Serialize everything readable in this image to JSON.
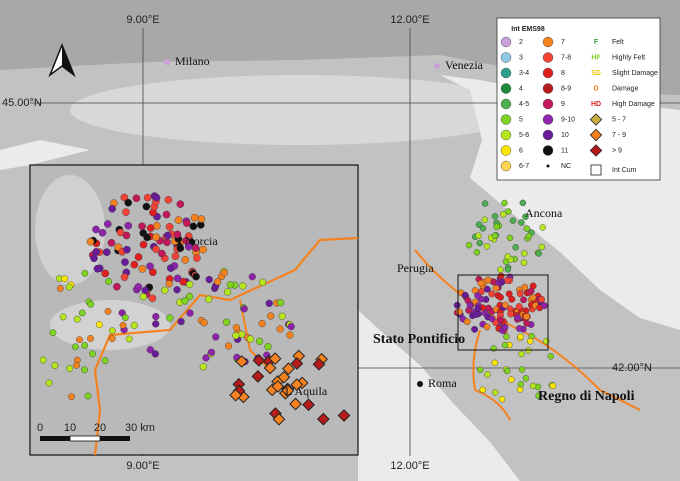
{
  "map": {
    "grid_labels": [
      "9.00°E",
      "12.00°E",
      "45.00°N",
      "42.00°N",
      "9.00°E",
      "12.00°E"
    ],
    "places": [
      "Milano",
      "Venezia",
      "Ancona",
      "Perugia",
      "Roma",
      "Stato Pontificio",
      "Regno di Napoli"
    ],
    "inset_places": [
      "Norcia",
      "L'Aquila"
    ]
  },
  "legend": {
    "title": "Int EMS98",
    "intensity": [
      {
        "label": "2",
        "color": "#c9a0dc"
      },
      {
        "label": "3",
        "color": "#8ecae6"
      },
      {
        "label": "3-4",
        "color": "#2a9d8f"
      },
      {
        "label": "4",
        "color": "#1e8a3c"
      },
      {
        "label": "4-5",
        "color": "#4caf50"
      },
      {
        "label": "5",
        "color": "#7ed321"
      },
      {
        "label": "5-6",
        "color": "#b5e61d"
      },
      {
        "label": "6",
        "color": "#ffe600"
      },
      {
        "label": "6-7",
        "color": "#ffd54f"
      },
      {
        "label": "7",
        "color": "#f5821f"
      },
      {
        "label": "7-8",
        "color": "#f44336"
      },
      {
        "label": "8",
        "color": "#e01e1e"
      },
      {
        "label": "8-9",
        "color": "#b71c1c"
      },
      {
        "label": "9",
        "color": "#c2185b"
      },
      {
        "label": "9-10",
        "color": "#8e24aa"
      },
      {
        "label": "10",
        "color": "#6a1b9a"
      },
      {
        "label": "11",
        "color": "#111111"
      },
      {
        "label": "NC",
        "color": "#111111"
      }
    ],
    "codes": [
      {
        "code": "F",
        "label": "Felt",
        "color": "#2e9e3e"
      },
      {
        "code": "HF",
        "label": "Highly Felt",
        "color": "#7ed321"
      },
      {
        "code": "SD",
        "label": "Slight Damage",
        "color": "#f5c400"
      },
      {
        "code": "D",
        "label": "Damage",
        "color": "#f5821f"
      },
      {
        "code": "HD",
        "label": "High Damage",
        "color": "#e01e1e"
      }
    ],
    "cumulative": [
      {
        "label": "5 - 7",
        "color": "#c8b040"
      },
      {
        "label": "7 - 9",
        "color": "#f5821f"
      },
      {
        "label": "> 9",
        "color": "#b71c1c"
      }
    ],
    "int_cum": "Int Cum"
  },
  "scale_bar": [
    "0",
    "10",
    "20",
    "30 km"
  ]
}
